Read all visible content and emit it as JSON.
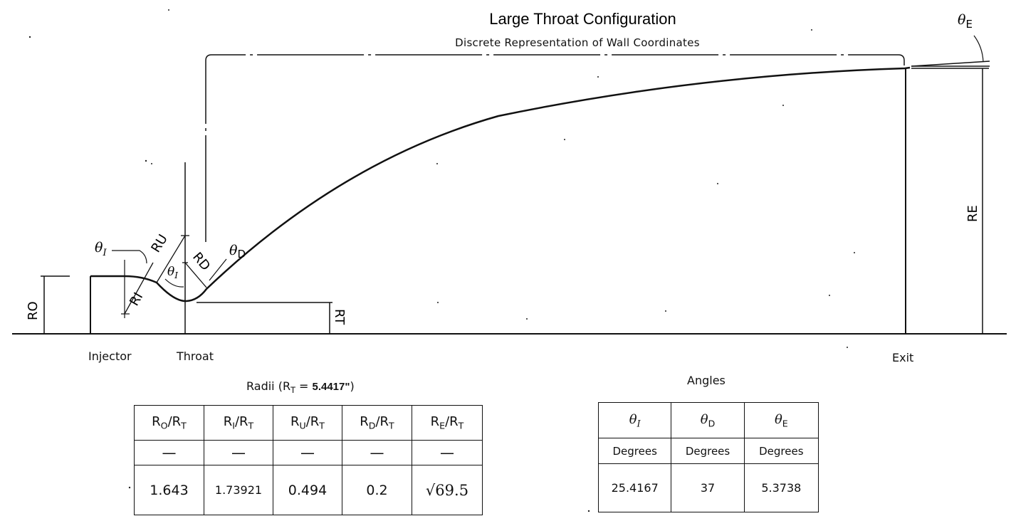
{
  "title": "Large Throat Configuration",
  "subtitle": "Discrete Representation of Wall Coordinates",
  "labels": {
    "theta_I": "θ",
    "theta_I_sub": "I",
    "theta_D": "θ",
    "theta_D_sub": "D",
    "theta_E": "θ",
    "theta_E_sub": "E",
    "R_U": "RU",
    "R_D": "RD",
    "R_I": "RI",
    "R_O": "RO",
    "R_T": "RT",
    "R_E": "RE"
  },
  "stations": {
    "injector": "Injector",
    "throat": "Throat",
    "exit": "Exit"
  },
  "radii_table": {
    "caption_prefix": "Radii (R",
    "caption_sub": "T",
    "caption_suffix": " = ",
    "caption_value": "5.4417\"",
    "caption_close": ")",
    "headers": [
      {
        "a": "R",
        "a_sub": "O",
        "b": "/R",
        "b_sub": "T"
      },
      {
        "a": "R",
        "a_sub": "I",
        "b": "/R",
        "b_sub": "T"
      },
      {
        "a": "R",
        "a_sub": "U",
        "b": "/R",
        "b_sub": "T"
      },
      {
        "a": "R",
        "a_sub": "D",
        "b": "/R",
        "b_sub": "T"
      },
      {
        "a": "R",
        "a_sub": "E",
        "b": "/R",
        "b_sub": "T"
      }
    ],
    "units": [
      "—",
      "—",
      "—",
      "—",
      "—"
    ],
    "values": [
      "1.643",
      "1.73921",
      "0.494",
      "0.2",
      "√69.5"
    ]
  },
  "angles_table": {
    "caption": "Angles",
    "headers": [
      {
        "a": "θ",
        "a_sub": "I"
      },
      {
        "a": "θ",
        "a_sub": "D"
      },
      {
        "a": "θ",
        "a_sub": "E"
      }
    ],
    "units": [
      "Degrees",
      "Degrees",
      "Degrees"
    ],
    "values": [
      "25.4167",
      "37",
      "5.3738"
    ]
  }
}
